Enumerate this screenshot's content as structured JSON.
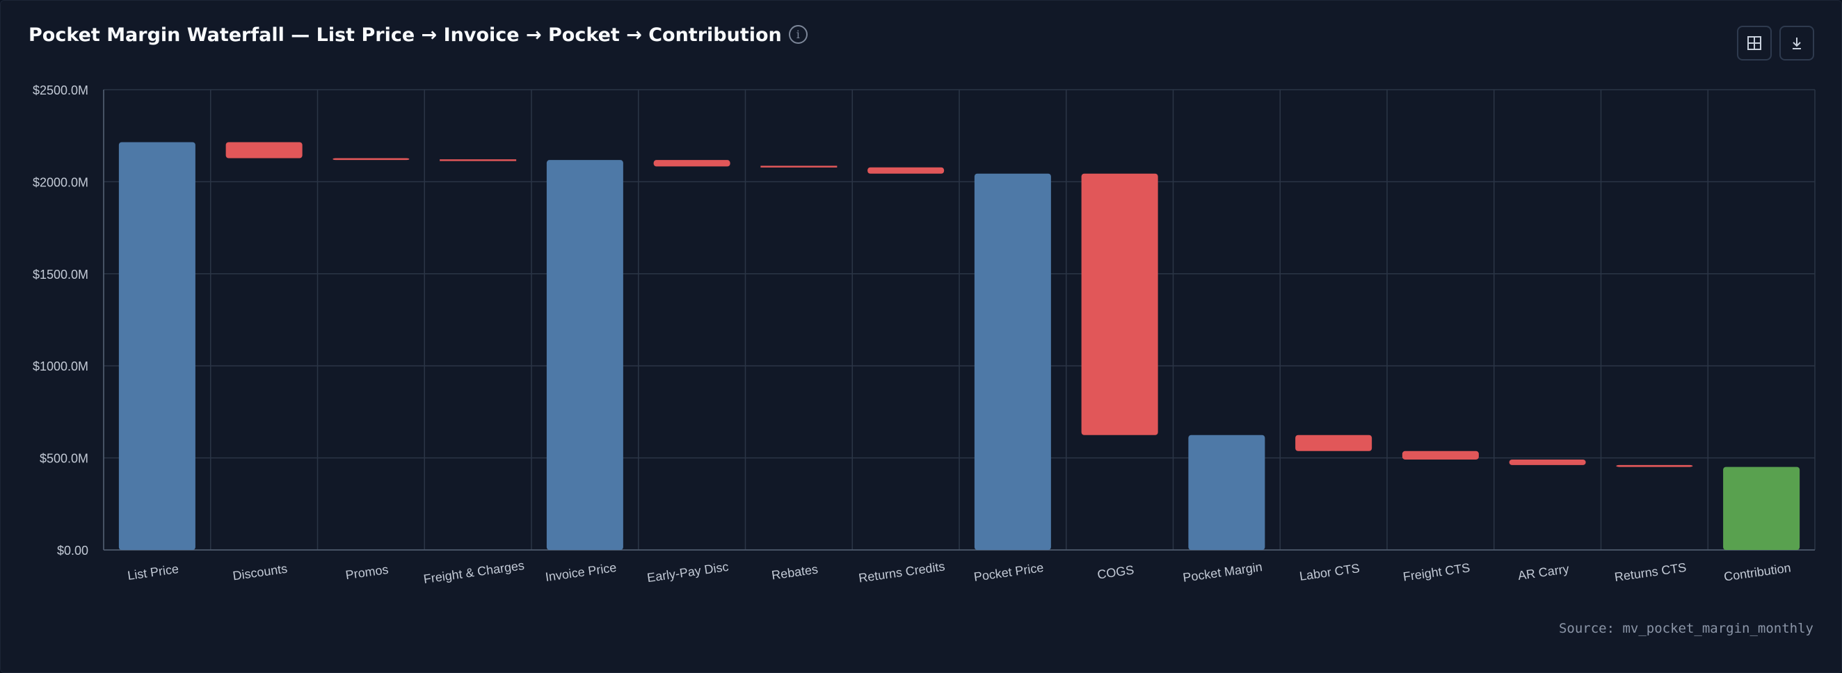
{
  "header": {
    "title": "Pocket Margin Waterfall — List Price → Invoice → Pocket → Contribution",
    "info_icon": "info-icon",
    "actions": [
      {
        "name": "table-view-button",
        "icon": "table-icon"
      },
      {
        "name": "download-button",
        "icon": "download-icon"
      }
    ]
  },
  "chart_data": {
    "type": "bar",
    "subtype": "waterfall",
    "title": "Pocket Margin Waterfall — List Price → Invoice → Pocket → Contribution",
    "xlabel": "",
    "ylabel": "",
    "ylim": [
      0,
      2500
    ],
    "yticks": [
      0,
      500,
      1000,
      1500,
      2000,
      2500
    ],
    "ytick_labels": [
      "$0.00",
      "$500.0M",
      "$1000.0M",
      "$1500.0M",
      "$2000.0M",
      "$2500.0M"
    ],
    "grid": true,
    "legend": false,
    "colors": {
      "total": "#4e79a7",
      "decrease": "#e15759",
      "final": "#59a14f"
    },
    "categories": [
      "List Price",
      "Discounts",
      "Promos",
      "Freight & Charges",
      "Invoice Price",
      "Early-Pay Disc",
      "Rebates",
      "Returns Credits",
      "Pocket Price",
      "COGS",
      "Pocket Margin",
      "Labor CTS",
      "Freight CTS",
      "AR Carry",
      "Returns CTS",
      "Contribution"
    ],
    "bars": [
      {
        "label": "List Price",
        "kind": "total",
        "start": 0,
        "end": 2215
      },
      {
        "label": "Discounts",
        "kind": "decrease",
        "start": 2215,
        "end": 2128
      },
      {
        "label": "Promos",
        "kind": "decrease",
        "start": 2128,
        "end": 2118
      },
      {
        "label": "Freight & Charges",
        "kind": "decrease",
        "start": 2118,
        "end": 2118
      },
      {
        "label": "Invoice Price",
        "kind": "total",
        "start": 0,
        "end": 2118
      },
      {
        "label": "Early-Pay Disc",
        "kind": "decrease",
        "start": 2118,
        "end": 2083
      },
      {
        "label": "Rebates",
        "kind": "decrease",
        "start": 2083,
        "end": 2078
      },
      {
        "label": "Returns Credits",
        "kind": "decrease",
        "start": 2078,
        "end": 2044
      },
      {
        "label": "Pocket Price",
        "kind": "total",
        "start": 0,
        "end": 2044
      },
      {
        "label": "COGS",
        "kind": "decrease",
        "start": 2044,
        "end": 624
      },
      {
        "label": "Pocket Margin",
        "kind": "total",
        "start": 0,
        "end": 624
      },
      {
        "label": "Labor CTS",
        "kind": "decrease",
        "start": 624,
        "end": 537
      },
      {
        "label": "Freight CTS",
        "kind": "decrease",
        "start": 537,
        "end": 491
      },
      {
        "label": "AR Carry",
        "kind": "decrease",
        "start": 491,
        "end": 461
      },
      {
        "label": "Returns CTS",
        "kind": "decrease",
        "start": 461,
        "end": 451
      },
      {
        "label": "Contribution",
        "kind": "final",
        "start": 0,
        "end": 451
      }
    ]
  },
  "footer": {
    "source": "Source: mv_pocket_margin_monthly"
  }
}
